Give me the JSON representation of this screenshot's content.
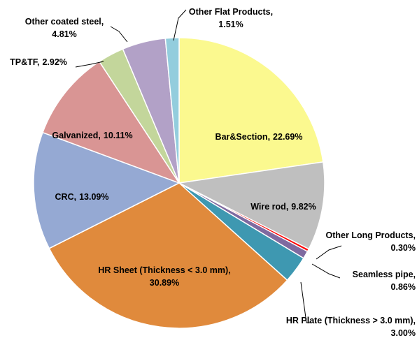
{
  "chart_data": {
    "type": "pie",
    "categories": [
      "Bar&Section,",
      "Wire rod,",
      "Other Long Products,",
      "Seamless pipe,",
      "HR Plate (Thickness > 3.0 mm),",
      "HR Sheet (Thickness < 3.0 mm),",
      "CRC,",
      "Galvanized,",
      "TP&TF,",
      "Other coated steel,",
      "Other Flat Products,"
    ],
    "values": [
      22.69,
      9.82,
      0.3,
      0.86,
      3.0,
      30.89,
      13.09,
      10.11,
      2.92,
      4.81,
      1.51
    ],
    "value_labels": [
      "22.69%",
      "9.82%",
      "0.30%",
      "0.86%",
      "3.00%",
      "30.89%",
      "13.09%",
      "10.11%",
      "2.92%",
      "4.81%",
      "1.51%"
    ],
    "colors": [
      "#fbf98f",
      "#bfbfbf",
      "#ff0000",
      "#7f6aa0",
      "#3e98b1",
      "#e08a3c",
      "#95a9d3",
      "#d99594",
      "#c3d69b",
      "#b2a1c7",
      "#93cddd"
    ]
  }
}
